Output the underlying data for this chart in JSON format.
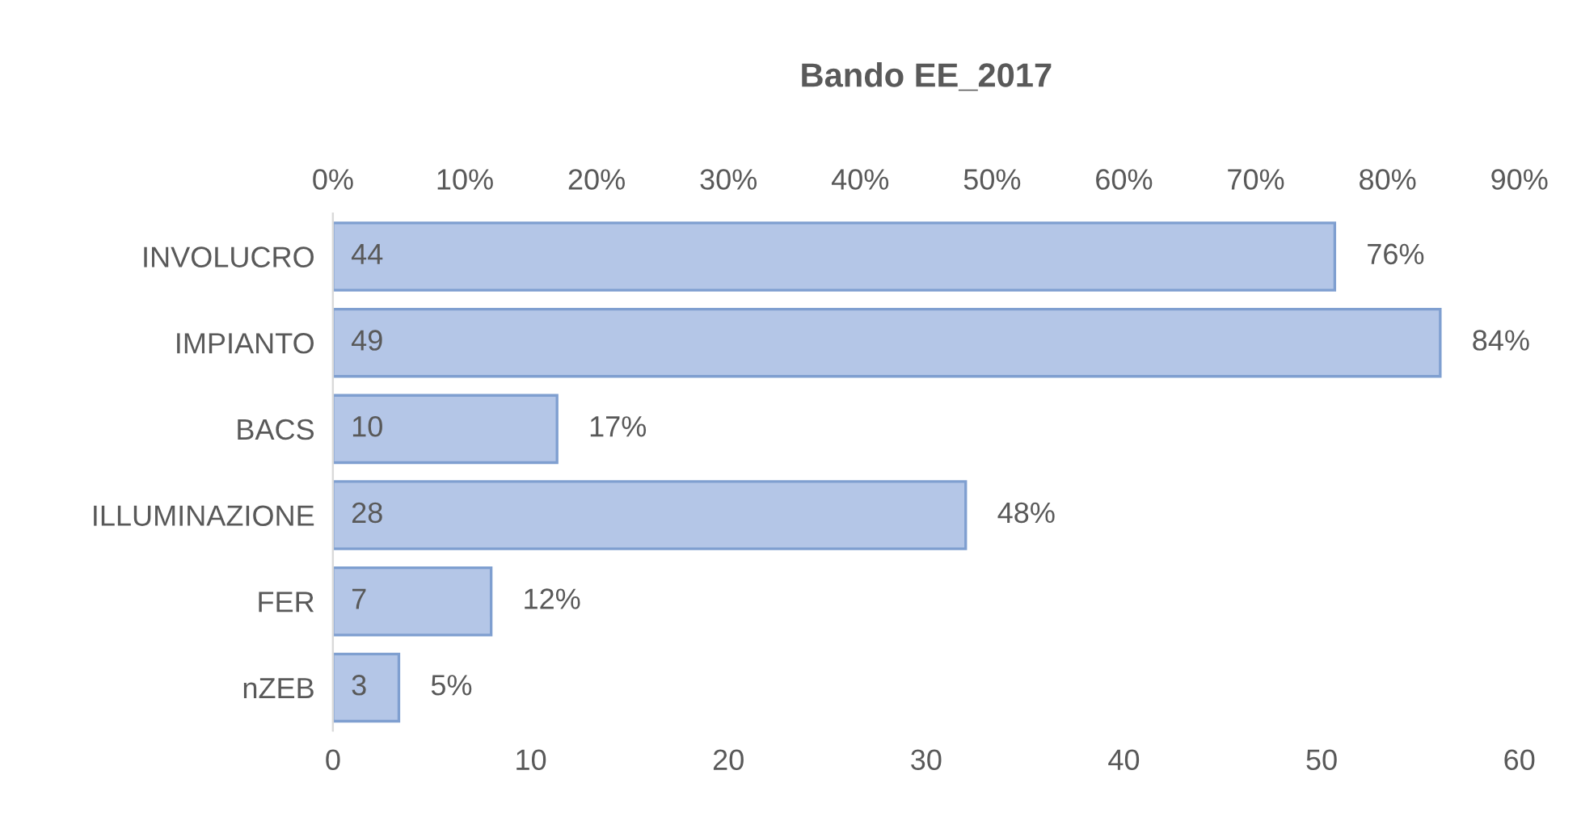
{
  "chart_data": {
    "type": "bar",
    "orientation": "horizontal",
    "title": "Bando EE_2017",
    "categories": [
      "INVOLUCRO",
      "IMPIANTO",
      "BACS",
      "ILLUMINAZIONE",
      "FER",
      "nZEB"
    ],
    "series": [
      {
        "color": "#b4c6e7",
        "axis": "x2",
        "values": [
          76,
          84,
          17,
          48,
          12,
          5
        ],
        "value_labels": [
          "76%",
          "84%",
          "17%",
          "48%",
          "12%",
          "5%"
        ]
      }
    ],
    "annotations": [
      {
        "text": "44",
        "y": "INVOLUCRO"
      },
      {
        "text": "49",
        "y": "IMPIANTO"
      },
      {
        "text": "10",
        "y": "BACS"
      },
      {
        "text": "28",
        "y": "ILLUMINAZIONE"
      },
      {
        "text": "7",
        "y": "FER"
      },
      {
        "text": "3",
        "y": "nZEB"
      }
    ],
    "xlim": [
      0,
      60
    ],
    "xticks": [
      0,
      10,
      20,
      30,
      40,
      50,
      60
    ],
    "x2lim": [
      0,
      90
    ],
    "x2ticks": [
      {
        "value": 0,
        "label": "0%"
      },
      {
        "value": 10,
        "label": "10%"
      },
      {
        "value": 20,
        "label": "20%"
      },
      {
        "value": 30,
        "label": "30%"
      },
      {
        "value": 40,
        "label": "40%"
      },
      {
        "value": 50,
        "label": "50%"
      },
      {
        "value": 60,
        "label": "60%"
      },
      {
        "value": 70,
        "label": "70%"
      },
      {
        "value": 80,
        "label": "80%"
      },
      {
        "value": 90,
        "label": "90%"
      }
    ],
    "grid": false,
    "legend": false
  }
}
